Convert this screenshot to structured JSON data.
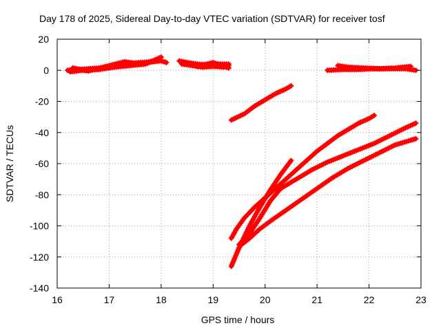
{
  "chart_data": {
    "type": "scatter",
    "title": "Day 178 of 2025, Sidereal Day-to-day VTEC variation (SDTVAR) for receiver tosf",
    "xlabel": "GPS time / hours",
    "ylabel": "SDTVAR / TECUs",
    "xlim": [
      16,
      23
    ],
    "ylim": [
      -140,
      20
    ],
    "xticks": [
      "16",
      "17",
      "18",
      "19",
      "20",
      "21",
      "22",
      "23"
    ],
    "yticks": [
      "20",
      "0",
      "-20",
      "-40",
      "-60",
      "-80",
      "-100",
      "-120",
      "-140"
    ],
    "grid": true,
    "marker": "plus",
    "color": "#ff0000",
    "series": [
      {
        "x": [
          16.2,
          16.4,
          16.6,
          16.8,
          17.0,
          17.2,
          17.4,
          17.6,
          17.8,
          18.0,
          18.1
        ],
        "y": [
          0,
          0.5,
          1,
          1.5,
          2.5,
          3.5,
          4.5,
          5,
          5.5,
          6,
          5
        ]
      },
      {
        "x": [
          16.25,
          16.5,
          16.8,
          17.1,
          17.4,
          17.7,
          18.0
        ],
        "y": [
          -1,
          0,
          0.5,
          2,
          3,
          4,
          8.5
        ]
      },
      {
        "x": [
          16.3,
          16.6,
          17.0,
          17.3,
          17.6,
          17.9
        ],
        "y": [
          1.5,
          -0.5,
          3,
          5.5,
          4,
          6
        ]
      },
      {
        "x": [
          18.35,
          18.5,
          18.7,
          18.9,
          19.1,
          19.3
        ],
        "y": [
          6,
          5,
          4,
          3.5,
          4,
          4
        ]
      },
      {
        "x": [
          18.4,
          18.6,
          18.8,
          19.0,
          19.2,
          19.3
        ],
        "y": [
          4,
          3,
          2,
          2.5,
          2,
          3
        ]
      },
      {
        "x": [
          18.45,
          18.7,
          19.0,
          19.3
        ],
        "y": [
          5,
          2.5,
          5,
          1.5
        ]
      },
      {
        "x": [
          19.35,
          19.6,
          19.8,
          20.0,
          20.2,
          20.4,
          20.5
        ],
        "y": [
          -32,
          -28,
          -23,
          -19,
          -15,
          -12,
          -10
        ]
      },
      {
        "x": [
          21.2,
          21.5,
          21.8,
          22.1,
          22.4,
          22.7,
          22.9
        ],
        "y": [
          0,
          0.5,
          0.5,
          1,
          1,
          1,
          0
        ]
      },
      {
        "x": [
          21.4,
          21.6,
          21.9,
          22.2,
          22.5,
          22.8
        ],
        "y": [
          3,
          2,
          1.5,
          1,
          1.5,
          2.5
        ]
      },
      {
        "x": [
          19.35,
          19.5,
          19.7,
          19.9,
          20.1,
          20.3,
          20.5
        ],
        "y": [
          -126,
          -114,
          -100,
          -88,
          -77,
          -67,
          -58
        ]
      },
      {
        "x": [
          19.35,
          19.45,
          19.6,
          19.8,
          20.0,
          20.2,
          20.4,
          20.6,
          20.8,
          21.0,
          21.2,
          21.4,
          21.6,
          21.8,
          22.0,
          22.1
        ],
        "y": [
          -108,
          -102,
          -95,
          -88,
          -82,
          -76,
          -70,
          -64,
          -58,
          -52,
          -47,
          -42,
          -38,
          -34,
          -31,
          -29
        ]
      },
      {
        "x": [
          19.5,
          19.7,
          19.9,
          20.1,
          20.3,
          20.6,
          20.9,
          21.2,
          21.5,
          21.8,
          22.1,
          22.4,
          22.7,
          22.9
        ],
        "y": [
          -112,
          -105,
          -95,
          -84,
          -76,
          -70,
          -64,
          -59,
          -55,
          -51,
          -47,
          -42,
          -37,
          -34
        ]
      },
      {
        "x": [
          19.55,
          19.7,
          19.9,
          20.1,
          20.4,
          20.7,
          21.0,
          21.3,
          21.6,
          21.9,
          22.2,
          22.5,
          22.8,
          22.9
        ],
        "y": [
          -112,
          -108,
          -102,
          -97,
          -90,
          -83,
          -76,
          -69,
          -63,
          -58,
          -53,
          -48,
          -45,
          -44
        ]
      }
    ]
  }
}
